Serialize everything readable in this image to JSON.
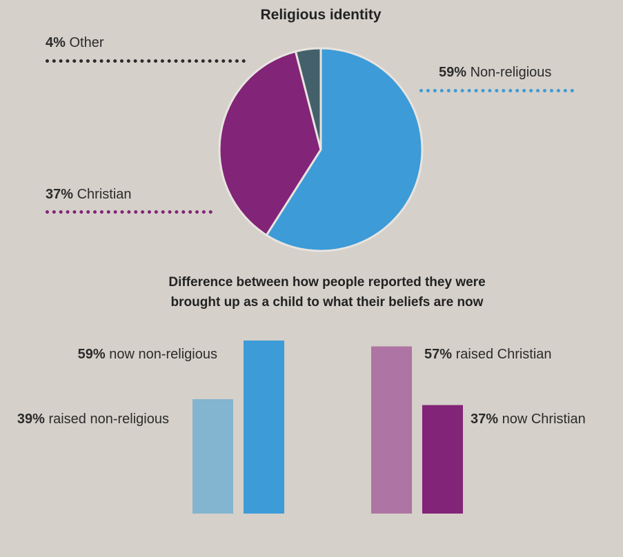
{
  "chart_data": [
    {
      "type": "pie",
      "title": "Religious identity",
      "slices": [
        {
          "label": "Non-religious",
          "value": 59,
          "value_label": "59%",
          "color": "#3d9bd7"
        },
        {
          "label": "Christian",
          "value": 37,
          "value_label": "37%",
          "color": "#822477"
        },
        {
          "label": "Other",
          "value": 4,
          "value_label": "4%",
          "color": "#43606b"
        }
      ]
    },
    {
      "type": "bar",
      "title": "Difference between how people reported they were brought up as a child to what their beliefs are now",
      "title_lines": [
        "Difference between how people reported they were",
        "brought up as a child to what their beliefs are now"
      ],
      "ylim": [
        0,
        59
      ],
      "bars": [
        {
          "pct": "39%",
          "text": "raised non-religious",
          "value": 39,
          "color": "#83b4d0"
        },
        {
          "pct": "59%",
          "text": "now non-religious",
          "value": 59,
          "color": "#3d9bd7"
        },
        {
          "pct": "57%",
          "text": "raised Christian",
          "value": 57,
          "color": "#ae74a3"
        },
        {
          "pct": "37%",
          "text": "now Christian",
          "value": 37,
          "color": "#822477"
        }
      ]
    }
  ],
  "colors": {
    "background": "#d5d0ca",
    "other_dots": "#2b2b2b"
  }
}
